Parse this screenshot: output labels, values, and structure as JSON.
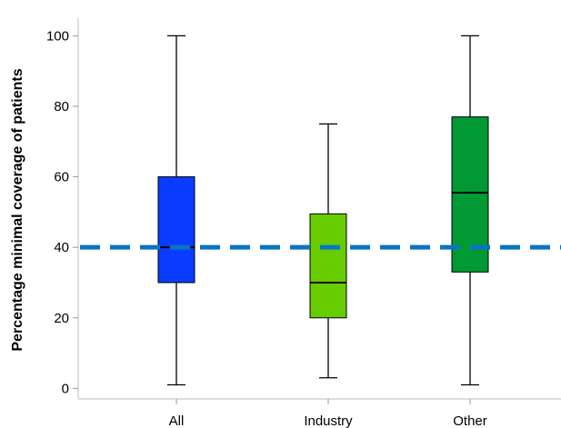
{
  "chart_data": {
    "type": "boxplot",
    "title": "",
    "xlabel": "",
    "ylabel": "Percentage minimal coverage of patients",
    "ylim": [
      -3,
      105
    ],
    "yticks": [
      0,
      20,
      40,
      60,
      80,
      100
    ],
    "grid": false,
    "categories": [
      "All",
      "Industry",
      "Other"
    ],
    "boxes": [
      {
        "category": "All",
        "min": 1,
        "q1": 30,
        "median": 40,
        "q3": 60,
        "max": 100,
        "color": "#0a3cff"
      },
      {
        "category": "Industry",
        "min": 3,
        "q1": 20,
        "median": 30,
        "q3": 49.5,
        "max": 75,
        "color": "#66cc00"
      },
      {
        "category": "Other",
        "min": 1,
        "q1": 33,
        "median": 55.5,
        "q3": 77,
        "max": 100,
        "color": "#009933"
      }
    ],
    "reference_line": {
      "value": 40,
      "style": "dashed",
      "color": "#0a74c4"
    }
  }
}
